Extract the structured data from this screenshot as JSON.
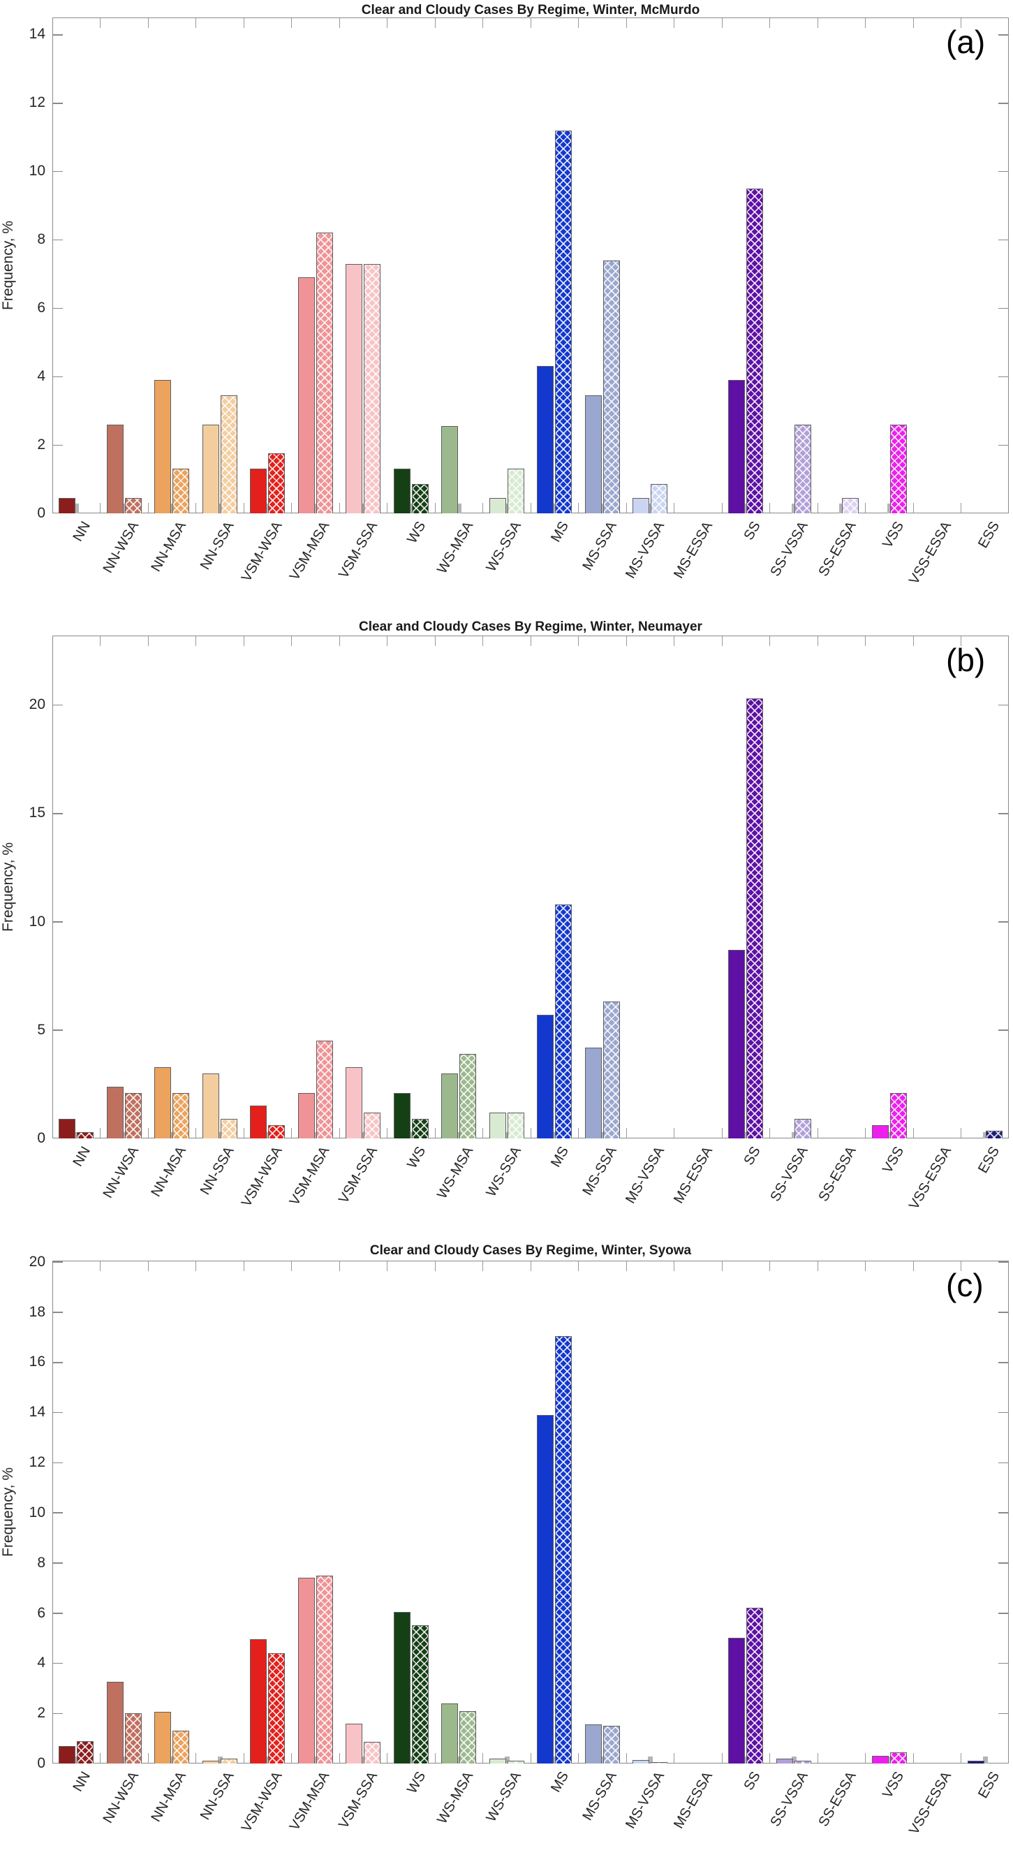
{
  "figure_title": "Clear and Cloudy Cases By Regime, Winter — three station panels",
  "series_names": [
    "Clear",
    "Cloudy"
  ],
  "chart_data": {
    "type": "bar",
    "grid": false,
    "legend": "none",
    "categories": [
      "NN",
      "NN-WSA",
      "NN-MSA",
      "NN-SSA",
      "VSM-WSA",
      "VSM-MSA",
      "VSM-SSA",
      "WS",
      "WS-MSA",
      "WS-SSA",
      "MS",
      "MS-SSA",
      "MS-VSSA",
      "MS-ESSA",
      "SS",
      "SS-VSSA",
      "SS-ESSA",
      "VSS",
      "VSS-ESSA",
      "ESS"
    ],
    "category_colors": [
      "#8C1D1D",
      "#C0705F",
      "#EBA35D",
      "#F4CD9F",
      "#E3201B",
      "#F09396",
      "#F7C3C6",
      "#15401 5",
      "#9CB98D",
      "#D9EAD2",
      "#1238CE",
      "#9AA7CE",
      "#CBD5F2",
      "#E8ECF8",
      "#5E10A5",
      "#B29FD9",
      "#DDD2F2",
      "#ED1FED",
      "#F8C8F8",
      "#1D1D78"
    ],
    "panels": [
      {
        "id": "a",
        "corner_label": "(a)",
        "title": "Clear and Cloudy Cases By Regime, Winter, McMurdo",
        "ylabel": "Frequency, %",
        "ylim": [
          0,
          14.5
        ],
        "yticks": [
          0,
          2,
          4,
          6,
          8,
          10,
          12,
          14
        ],
        "series": [
          {
            "name": "Clear",
            "values": [
              0.45,
              2.6,
              3.9,
              2.6,
              1.3,
              6.9,
              7.3,
              1.3,
              2.55,
              0.45,
              4.3,
              3.45,
              0.45,
              0,
              3.9,
              0,
              0,
              0,
              0,
              0
            ]
          },
          {
            "name": "Cloudy",
            "values": [
              0,
              0.45,
              1.3,
              3.45,
              1.75,
              8.2,
              7.3,
              0.85,
              0,
              1.3,
              11.2,
              7.4,
              0.85,
              0,
              9.5,
              2.6,
              0.45,
              2.6,
              0,
              0
            ]
          }
        ]
      },
      {
        "id": "b",
        "corner_label": "(b)",
        "title": "Clear and Cloudy Cases By Regime, Winter, Neumayer",
        "ylabel": "Frequency, %",
        "ylim": [
          0,
          23.2
        ],
        "yticks": [
          0,
          5,
          10,
          15,
          20
        ],
        "series": [
          {
            "name": "Clear",
            "values": [
              0.9,
              2.4,
              3.3,
              3.0,
              1.5,
              2.1,
              3.3,
              2.1,
              3.0,
              1.2,
              5.7,
              4.2,
              0,
              0,
              8.7,
              0,
              0,
              0.6,
              0,
              0
            ]
          },
          {
            "name": "Cloudy",
            "values": [
              0.3,
              2.1,
              2.1,
              0.9,
              0.6,
              4.5,
              1.2,
              0.9,
              3.9,
              1.2,
              10.8,
              6.3,
              0,
              0,
              20.3,
              0.9,
              0,
              2.1,
              0,
              0.35
            ]
          }
        ]
      },
      {
        "id": "c",
        "corner_label": "(c)",
        "title": "Clear and Cloudy Cases By Regime, Winter, Syowa",
        "ylabel": "Frequency, %",
        "ylim": [
          0,
          20.05
        ],
        "yticks": [
          0,
          2,
          4,
          6,
          8,
          10,
          12,
          14,
          16,
          18,
          20
        ],
        "series": [
          {
            "name": "Clear",
            "values": [
              0.7,
              3.25,
              2.05,
              0.1,
              4.95,
              7.4,
              1.6,
              6.05,
              2.4,
              0.2,
              13.9,
              1.55,
              0.15,
              0,
              5.0,
              0.2,
              0,
              0.3,
              0,
              0.1
            ]
          },
          {
            "name": "Cloudy",
            "values": [
              0.9,
              2.0,
              1.3,
              0.2,
              4.4,
              7.5,
              0.85,
              5.5,
              2.1,
              0.1,
              17.05,
              1.5,
              0.05,
              0,
              6.2,
              0.1,
              0,
              0.45,
              0,
              0
            ]
          }
        ]
      }
    ]
  }
}
